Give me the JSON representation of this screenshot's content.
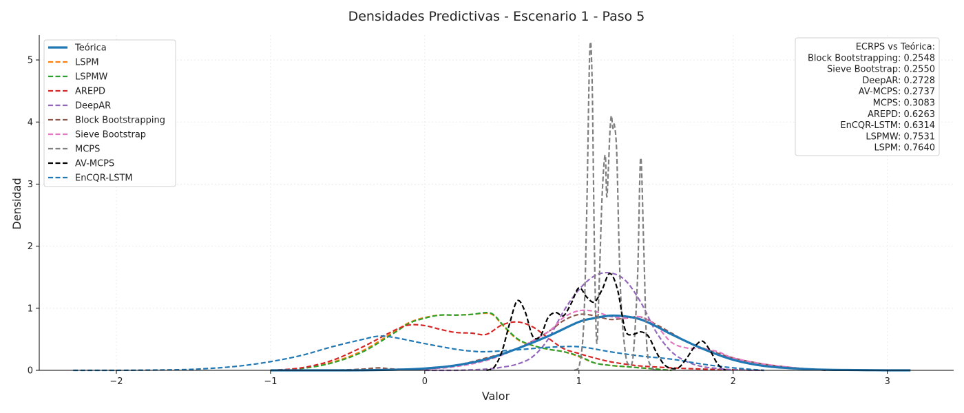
{
  "chart_data": {
    "type": "line",
    "title": "Densidades Predictivas - Escenario 1 - Paso 5",
    "xlabel": "Valor",
    "ylabel": "Densidad",
    "xlim": [
      -2.5,
      3.43
    ],
    "ylim": [
      0,
      5.4
    ],
    "xticks": [
      -2,
      -1,
      0,
      1,
      2,
      3
    ],
    "yticks": [
      0,
      1,
      2,
      3,
      4,
      5
    ],
    "grid": true,
    "legend_position": "top-left",
    "series": [
      {
        "name": "Teórica",
        "color": "#1f77b4",
        "style": "solid",
        "width": 3.2,
        "x": [
          -1.0,
          -0.5,
          -0.2,
          0.0,
          0.2,
          0.4,
          0.6,
          0.8,
          1.0,
          1.1,
          1.2,
          1.3,
          1.4,
          1.5,
          1.6,
          1.8,
          2.0,
          2.2,
          2.4,
          2.6,
          2.8,
          3.0,
          3.15
        ],
        "y": [
          0.0,
          0.0,
          0.01,
          0.03,
          0.08,
          0.18,
          0.35,
          0.55,
          0.78,
          0.84,
          0.88,
          0.87,
          0.82,
          0.71,
          0.58,
          0.35,
          0.17,
          0.07,
          0.03,
          0.01,
          0.005,
          0.0,
          0.0
        ]
      },
      {
        "name": "LSPM",
        "color": "#ff7f0e",
        "style": "dashed",
        "width": 2.2,
        "x": [
          -1.0,
          -0.8,
          -0.6,
          -0.4,
          -0.2,
          -0.1,
          0.0,
          0.1,
          0.2,
          0.3,
          0.4,
          0.45,
          0.5,
          0.6,
          0.7,
          0.8,
          0.9,
          1.0,
          1.1,
          1.2,
          1.3,
          1.4,
          1.5,
          1.6
        ],
        "y": [
          0.0,
          0.03,
          0.13,
          0.32,
          0.62,
          0.77,
          0.85,
          0.89,
          0.89,
          0.9,
          0.92,
          0.88,
          0.74,
          0.5,
          0.4,
          0.34,
          0.3,
          0.22,
          0.12,
          0.08,
          0.06,
          0.04,
          0.02,
          0.0
        ]
      },
      {
        "name": "LSPMW",
        "color": "#2ca02c",
        "style": "dashed",
        "width": 2.2,
        "x": [
          -1.0,
          -0.8,
          -0.6,
          -0.4,
          -0.2,
          -0.1,
          0.0,
          0.1,
          0.2,
          0.3,
          0.4,
          0.45,
          0.5,
          0.6,
          0.7,
          0.8,
          0.9,
          1.0,
          1.1,
          1.2,
          1.3,
          1.4,
          1.5,
          1.6
        ],
        "y": [
          0.0,
          0.03,
          0.12,
          0.3,
          0.6,
          0.76,
          0.84,
          0.89,
          0.89,
          0.9,
          0.93,
          0.89,
          0.75,
          0.51,
          0.4,
          0.34,
          0.3,
          0.23,
          0.12,
          0.08,
          0.06,
          0.04,
          0.02,
          0.0
        ]
      },
      {
        "name": "AREPD",
        "color": "#d62728",
        "style": "dashed",
        "width": 2.2,
        "x": [
          -1.0,
          -0.8,
          -0.6,
          -0.4,
          -0.2,
          -0.1,
          0.0,
          0.1,
          0.2,
          0.3,
          0.4,
          0.5,
          0.6,
          0.7,
          0.8,
          0.9,
          1.0,
          1.1,
          1.2,
          1.3,
          1.4,
          1.6,
          1.8,
          2.0,
          2.2
        ],
        "y": [
          0.0,
          0.04,
          0.16,
          0.38,
          0.64,
          0.73,
          0.72,
          0.66,
          0.61,
          0.6,
          0.58,
          0.73,
          0.78,
          0.7,
          0.52,
          0.35,
          0.27,
          0.2,
          0.14,
          0.1,
          0.07,
          0.04,
          0.02,
          0.01,
          0.0
        ]
      },
      {
        "name": "DeepAR",
        "color": "#9467bd",
        "style": "dashed",
        "width": 2.2,
        "x": [
          0.0,
          0.2,
          0.4,
          0.5,
          0.6,
          0.7,
          0.8,
          0.9,
          1.0,
          1.1,
          1.2,
          1.3,
          1.4,
          1.5,
          1.6,
          1.7,
          1.8,
          1.9,
          2.0,
          2.2
        ],
        "y": [
          0.0,
          0.0,
          0.02,
          0.05,
          0.1,
          0.22,
          0.5,
          0.95,
          1.3,
          1.52,
          1.57,
          1.45,
          1.1,
          0.62,
          0.3,
          0.14,
          0.06,
          0.03,
          0.01,
          0.0
        ]
      },
      {
        "name": "Block Bootstrapping",
        "color": "#8c564b",
        "style": "dashed",
        "width": 2.2,
        "x": [
          -0.6,
          -0.4,
          -0.3,
          -0.2,
          0.0,
          0.2,
          0.4,
          0.6,
          0.8,
          0.9,
          1.0,
          1.1,
          1.2,
          1.3,
          1.4,
          1.5,
          1.6,
          1.7,
          1.8,
          2.0,
          2.2,
          2.4,
          2.6
        ],
        "y": [
          0.0,
          0.02,
          0.04,
          0.02,
          0.02,
          0.08,
          0.2,
          0.35,
          0.62,
          0.8,
          0.9,
          0.88,
          0.82,
          0.84,
          0.86,
          0.74,
          0.6,
          0.46,
          0.36,
          0.2,
          0.1,
          0.04,
          0.0
        ]
      },
      {
        "name": "Sieve Bootstrap",
        "color": "#e377c2",
        "style": "dashed",
        "width": 2.2,
        "x": [
          -0.4,
          -0.2,
          0.0,
          0.2,
          0.4,
          0.6,
          0.8,
          0.9,
          1.0,
          1.1,
          1.2,
          1.3,
          1.4,
          1.5,
          1.6,
          1.7,
          1.8,
          1.9,
          2.0,
          2.2,
          2.4,
          2.6
        ],
        "y": [
          0.0,
          0.01,
          0.02,
          0.06,
          0.16,
          0.35,
          0.62,
          0.85,
          0.96,
          0.95,
          0.87,
          0.84,
          0.86,
          0.72,
          0.45,
          0.36,
          0.35,
          0.3,
          0.2,
          0.1,
          0.04,
          0.0
        ]
      },
      {
        "name": "MCPS",
        "color": "#7f7f7f",
        "style": "dashed",
        "width": 2.2,
        "x": [
          0.97,
          1.0,
          1.03,
          1.05,
          1.07,
          1.085,
          1.1,
          1.115,
          1.13,
          1.15,
          1.17,
          1.18,
          1.19,
          1.2,
          1.21,
          1.22,
          1.23,
          1.245,
          1.26,
          1.275,
          1.3,
          1.32,
          1.35,
          1.38,
          1.4,
          1.42,
          1.44,
          1.47,
          1.5
        ],
        "y": [
          0.0,
          0.05,
          0.7,
          2.5,
          5.12,
          4.7,
          2.0,
          0.45,
          1.3,
          2.8,
          3.47,
          2.8,
          3.2,
          3.8,
          4.1,
          3.9,
          3.95,
          3.5,
          2.0,
          1.0,
          0.3,
          0.1,
          0.2,
          1.5,
          3.42,
          2.0,
          0.4,
          0.05,
          0.0
        ]
      },
      {
        "name": "AV-MCPS",
        "color": "#000000",
        "style": "dashed",
        "width": 2.2,
        "x": [
          0.4,
          0.45,
          0.5,
          0.55,
          0.6,
          0.65,
          0.7,
          0.75,
          0.8,
          0.85,
          0.9,
          0.95,
          1.0,
          1.05,
          1.1,
          1.15,
          1.2,
          1.25,
          1.3,
          1.35,
          1.4,
          1.45,
          1.5,
          1.55,
          1.6,
          1.65,
          1.7,
          1.75,
          1.8,
          1.85,
          1.9,
          1.95
        ],
        "y": [
          0.0,
          0.05,
          0.3,
          0.75,
          1.12,
          0.95,
          0.55,
          0.55,
          0.85,
          0.93,
          0.88,
          1.08,
          1.33,
          1.18,
          1.1,
          1.3,
          1.56,
          1.3,
          0.65,
          0.58,
          0.62,
          0.55,
          0.3,
          0.1,
          0.03,
          0.05,
          0.2,
          0.38,
          0.47,
          0.32,
          0.1,
          0.0
        ]
      },
      {
        "name": "EnCQR-LSTM",
        "color": "#1f77b4",
        "style": "dashed",
        "width": 2.2,
        "x": [
          -2.28,
          -2.0,
          -1.6,
          -1.4,
          -1.2,
          -1.0,
          -0.8,
          -0.6,
          -0.4,
          -0.3,
          -0.2,
          0.0,
          0.2,
          0.3,
          0.4,
          0.6,
          0.8,
          1.0,
          1.2,
          1.4,
          1.6,
          1.8,
          2.0,
          2.2
        ],
        "y": [
          0.0,
          0.0,
          0.01,
          0.03,
          0.07,
          0.14,
          0.24,
          0.38,
          0.5,
          0.55,
          0.53,
          0.43,
          0.34,
          0.31,
          0.3,
          0.33,
          0.37,
          0.38,
          0.3,
          0.23,
          0.18,
          0.1,
          0.04,
          0.0
        ]
      }
    ],
    "annotation": {
      "title": "ECRPS vs Teórica:",
      "lines": [
        "Block Bootstrapping: 0.2548",
        "Sieve Bootstrap: 0.2550",
        "DeepAR: 0.2728",
        "AV-MCPS: 0.2737",
        "MCPS: 0.3083",
        "AREPD: 0.6263",
        "EnCQR-LSTM: 0.6314",
        "LSPMW: 0.7531",
        "LSPM: 0.7640"
      ]
    }
  }
}
